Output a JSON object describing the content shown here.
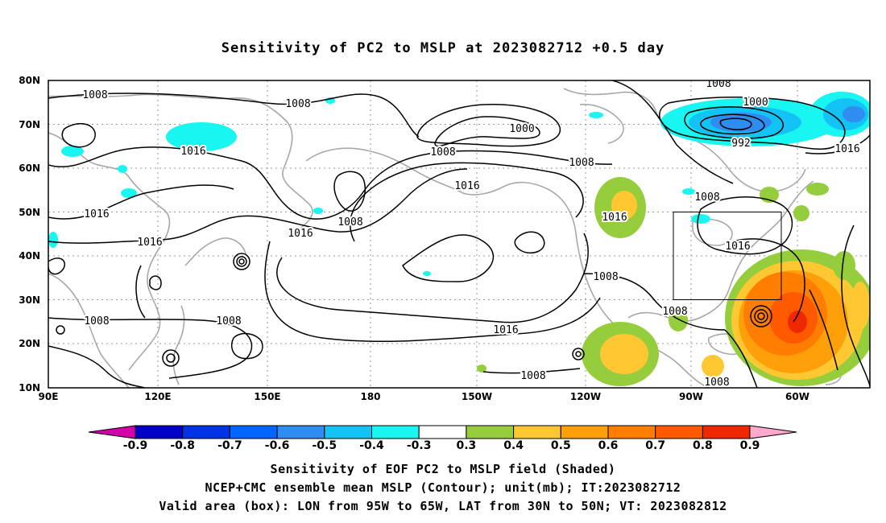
{
  "title": "Sensitivity of PC2 to MSLP at 2023082712 +0.5 day",
  "map": {
    "lon_labels": [
      "90E",
      "120E",
      "150E",
      "180",
      "150W",
      "120W",
      "90W",
      "60W"
    ],
    "lat_labels": [
      "80N",
      "70N",
      "60N",
      "50N",
      "40N",
      "30N",
      "20N",
      "10N"
    ],
    "box": {
      "lon_from": "95W",
      "lon_to": "65W",
      "lat_from": "30N",
      "lat_to": "50N"
    }
  },
  "contours": {
    "unit": "mb",
    "labels": [
      "1008",
      "1008",
      "1016",
      "1000",
      "1008",
      "1008",
      "1008",
      "1000",
      "992",
      "1016",
      "1016",
      "1016",
      "1008",
      "1016",
      "1016",
      "1016",
      "1008",
      "1016",
      "1016",
      "1008",
      "1008",
      "1008",
      "1008",
      "1008"
    ]
  },
  "shading": {
    "colors": {
      "neg09": "#d400aa",
      "neg08": "#0000c8",
      "neg07": "#0033e6",
      "neg06": "#0066ff",
      "neg05": "#2f8cf0",
      "neg04": "#14c3f5",
      "neg03": "#19f5f0",
      "neutral": "#ffffff",
      "pos03": "#96cd3c",
      "pos04": "#ffc832",
      "pos05": "#ffa00a",
      "pos06": "#ff7d00",
      "pos07": "#ff5a00",
      "pos08": "#f02800",
      "pos09": "#ffaacd"
    }
  },
  "colorbar": {
    "labels": [
      "-0.9",
      "-0.8",
      "-0.7",
      "-0.6",
      "-0.5",
      "-0.4",
      "-0.3",
      "0.3",
      "0.4",
      "0.5",
      "0.6",
      "0.7",
      "0.8",
      "0.9"
    ]
  },
  "footer": {
    "line1": "Sensitivity of EOF PC2 to MSLP field (Shaded)",
    "line2": "NCEP+CMC ensemble mean MSLP (Contour); unit(mb); IT:2023082712",
    "line3": "Valid area (box): LON from 95W to 65W, LAT from 30N to 50N; VT: 2023082812"
  }
}
